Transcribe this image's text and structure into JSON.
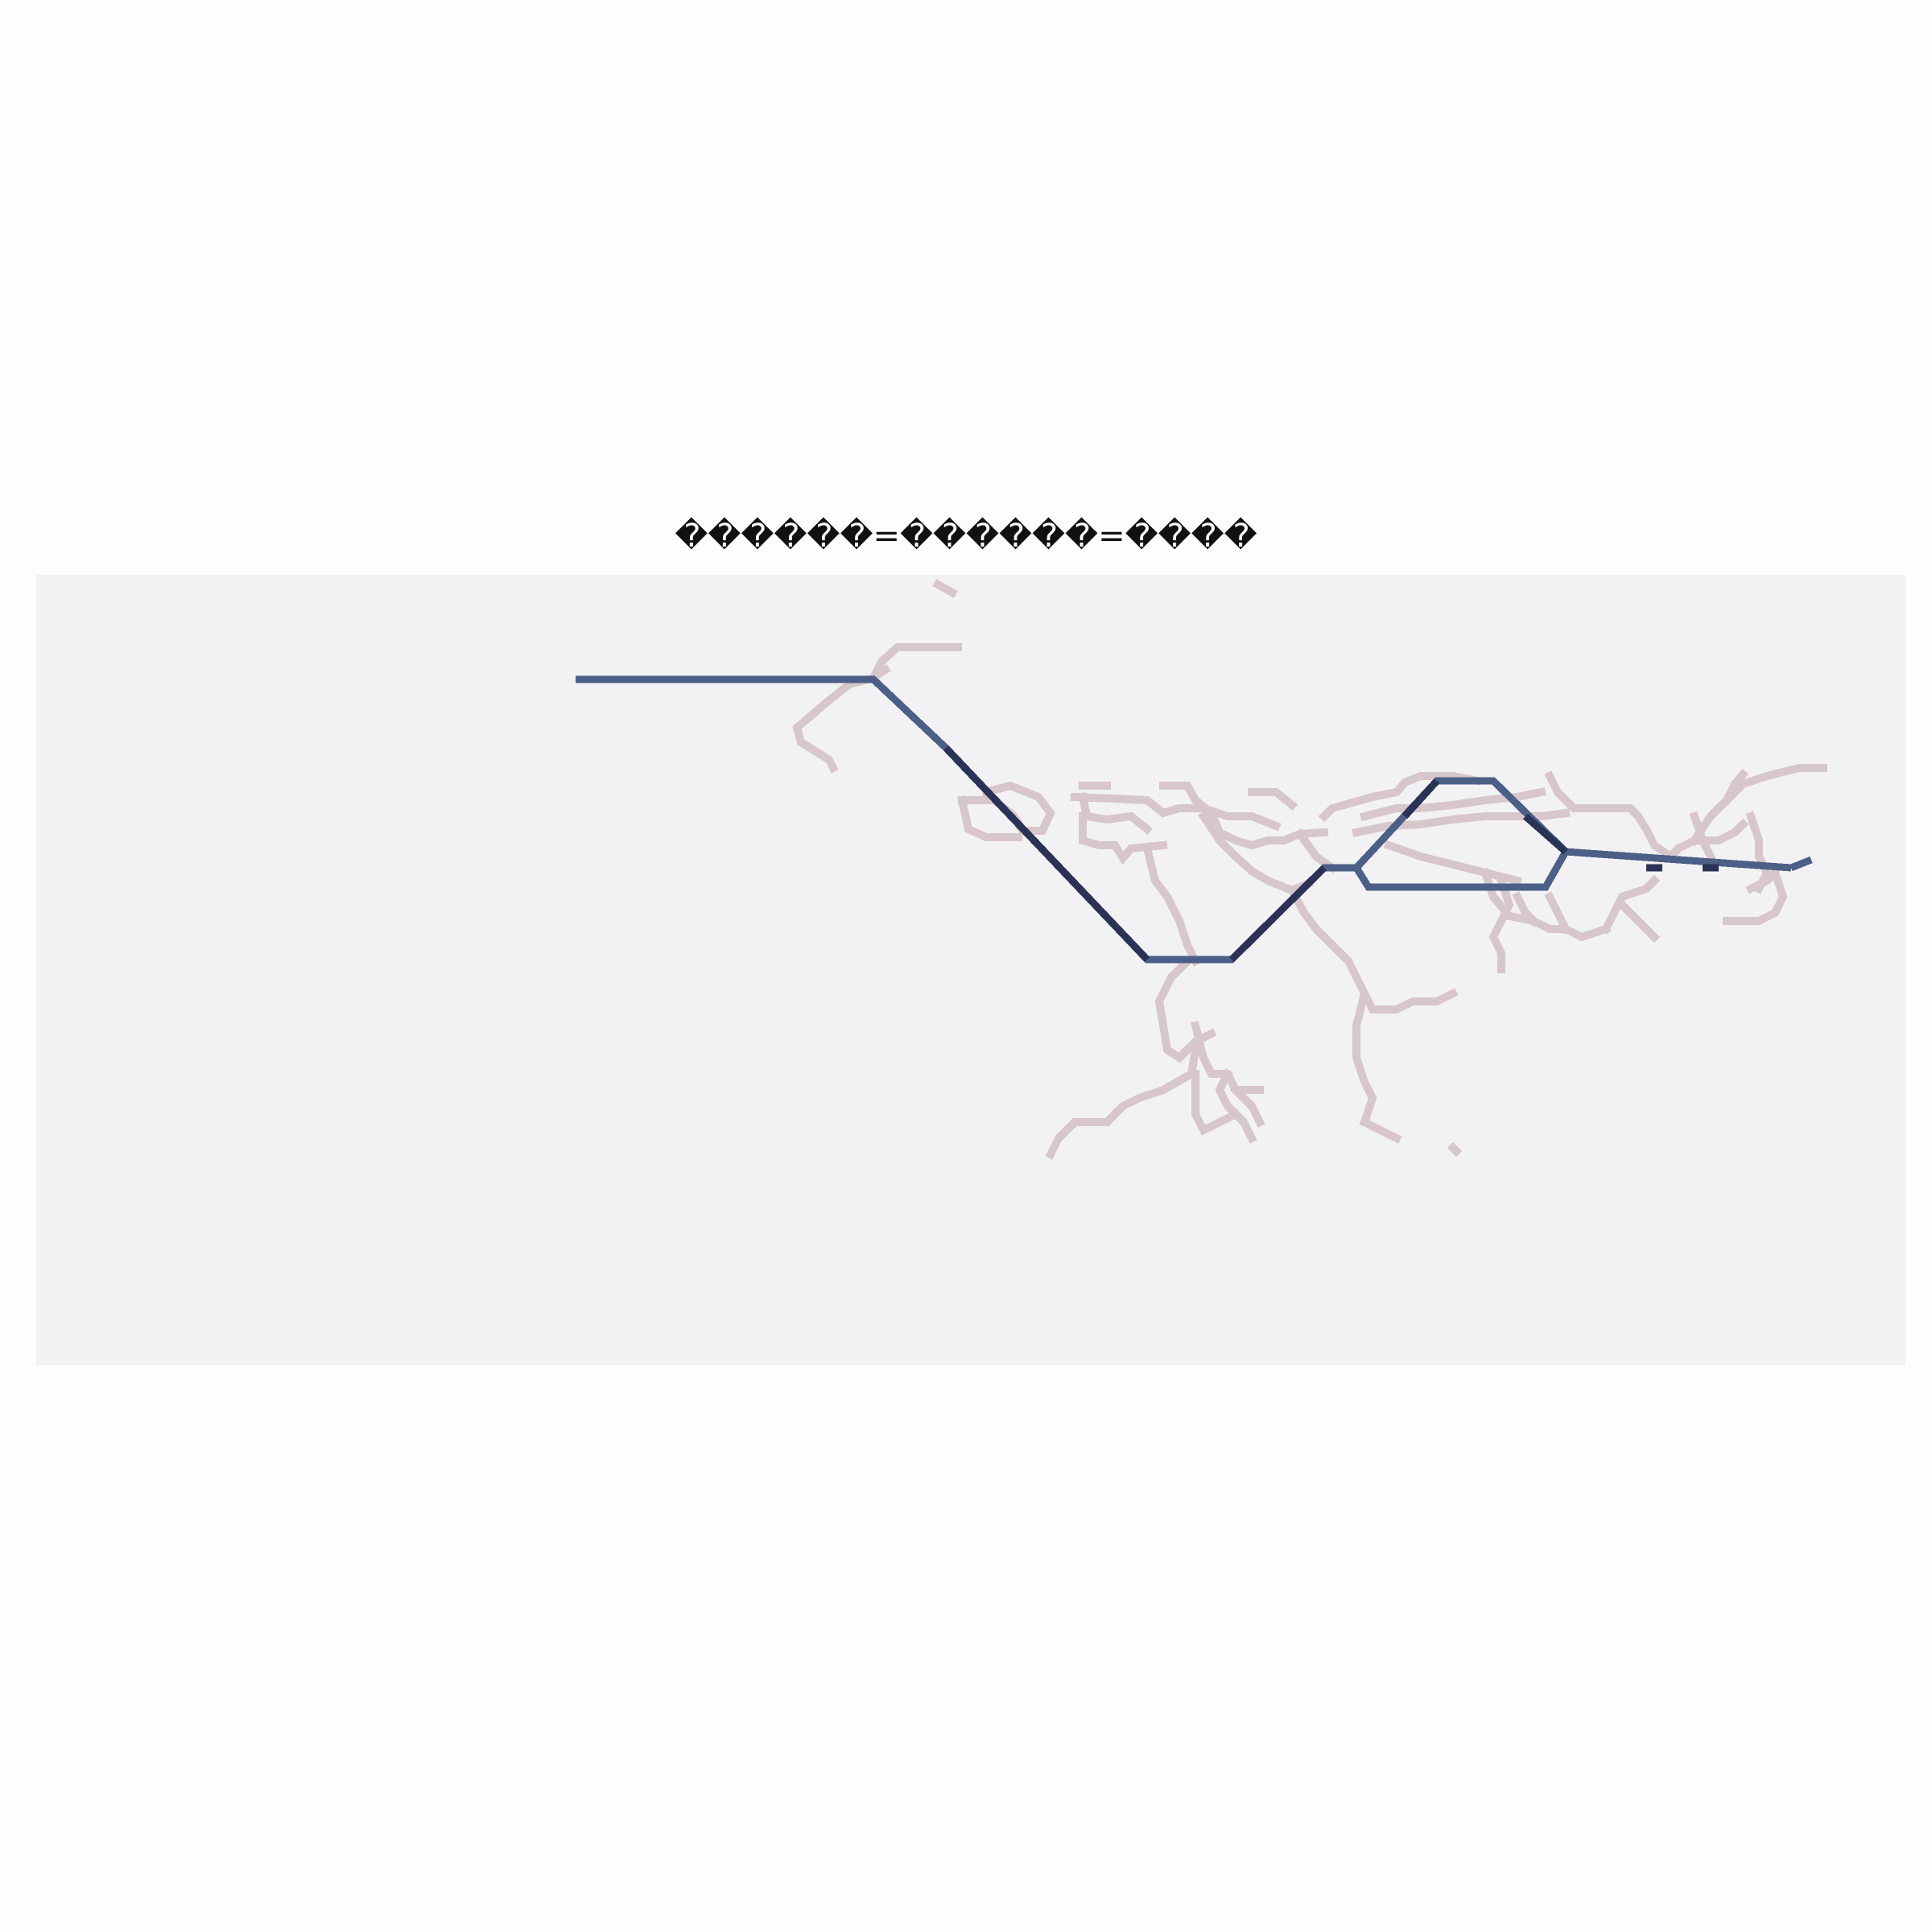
{
  "title": "������=������=����",
  "colors": {
    "page_background": "#fdfdfd",
    "map_background": "#f2f2f4",
    "network": "#d7c6ca",
    "network_highlight": "#f7f7f9",
    "route": "#4b5f87",
    "route_emphasis": "#2a3256"
  }
}
